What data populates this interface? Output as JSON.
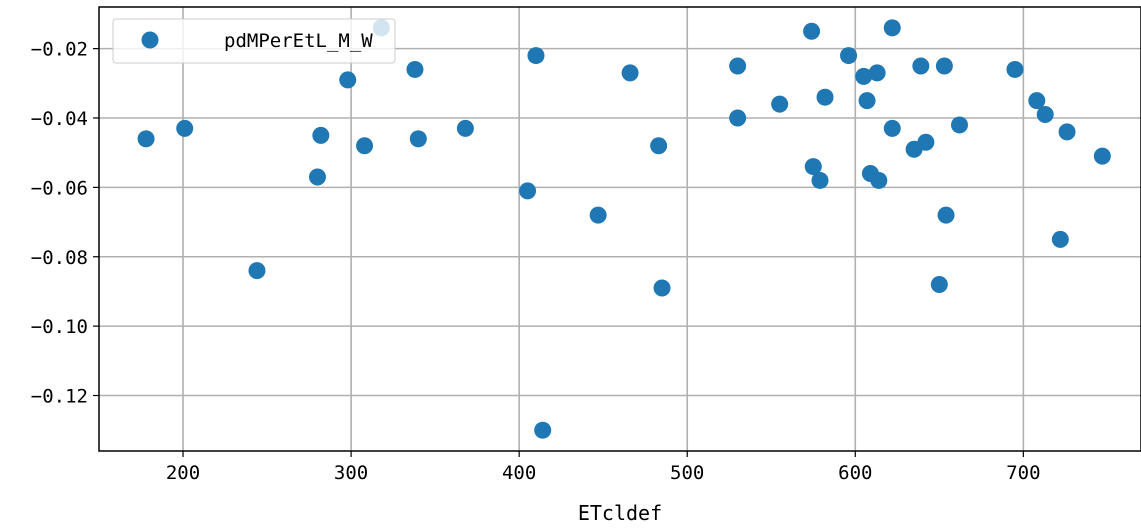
{
  "chart_data": {
    "type": "scatter",
    "title": "",
    "xlabel": "ETcldef",
    "ylabel": "",
    "xlim": [
      150,
      770
    ],
    "ylim": [
      -0.136,
      -0.008
    ],
    "xticks": [
      200,
      300,
      400,
      500,
      600,
      700
    ],
    "yticks": [
      -0.12,
      -0.1,
      -0.08,
      -0.06,
      -0.04,
      -0.02
    ],
    "xtick_labels": [
      "200",
      "300",
      "400",
      "500",
      "600",
      "700"
    ],
    "ytick_labels": [
      "−0.12",
      "−0.10",
      "−0.08",
      "−0.06",
      "−0.04",
      "−0.02"
    ],
    "grid": true,
    "legend_position": "upper-left",
    "series": [
      {
        "name": "pdMPerEtL_M_W",
        "color": "#1f77b4",
        "points": [
          [
            178,
            -0.046
          ],
          [
            201,
            -0.043
          ],
          [
            244,
            -0.084
          ],
          [
            280,
            -0.057
          ],
          [
            282,
            -0.045
          ],
          [
            298,
            -0.029
          ],
          [
            308,
            -0.048
          ],
          [
            318,
            -0.014
          ],
          [
            338,
            -0.026
          ],
          [
            340,
            -0.046
          ],
          [
            368,
            -0.043
          ],
          [
            405,
            -0.061
          ],
          [
            410,
            -0.022
          ],
          [
            414,
            -0.13
          ],
          [
            447,
            -0.068
          ],
          [
            466,
            -0.027
          ],
          [
            483,
            -0.048
          ],
          [
            485,
            -0.089
          ],
          [
            530,
            -0.025
          ],
          [
            530,
            -0.04
          ],
          [
            555,
            -0.036
          ],
          [
            574,
            -0.015
          ],
          [
            575,
            -0.054
          ],
          [
            579,
            -0.058
          ],
          [
            582,
            -0.034
          ],
          [
            596,
            -0.022
          ],
          [
            605,
            -0.028
          ],
          [
            607,
            -0.035
          ],
          [
            609,
            -0.056
          ],
          [
            613,
            -0.027
          ],
          [
            614,
            -0.058
          ],
          [
            622,
            -0.014
          ],
          [
            622,
            -0.043
          ],
          [
            635,
            -0.049
          ],
          [
            639,
            -0.025
          ],
          [
            642,
            -0.047
          ],
          [
            650,
            -0.088
          ],
          [
            653,
            -0.025
          ],
          [
            654,
            -0.068
          ],
          [
            662,
            -0.042
          ],
          [
            695,
            -0.026
          ],
          [
            708,
            -0.035
          ],
          [
            713,
            -0.039
          ],
          [
            722,
            -0.075
          ],
          [
            726,
            -0.044
          ],
          [
            747,
            -0.051
          ]
        ]
      }
    ]
  }
}
